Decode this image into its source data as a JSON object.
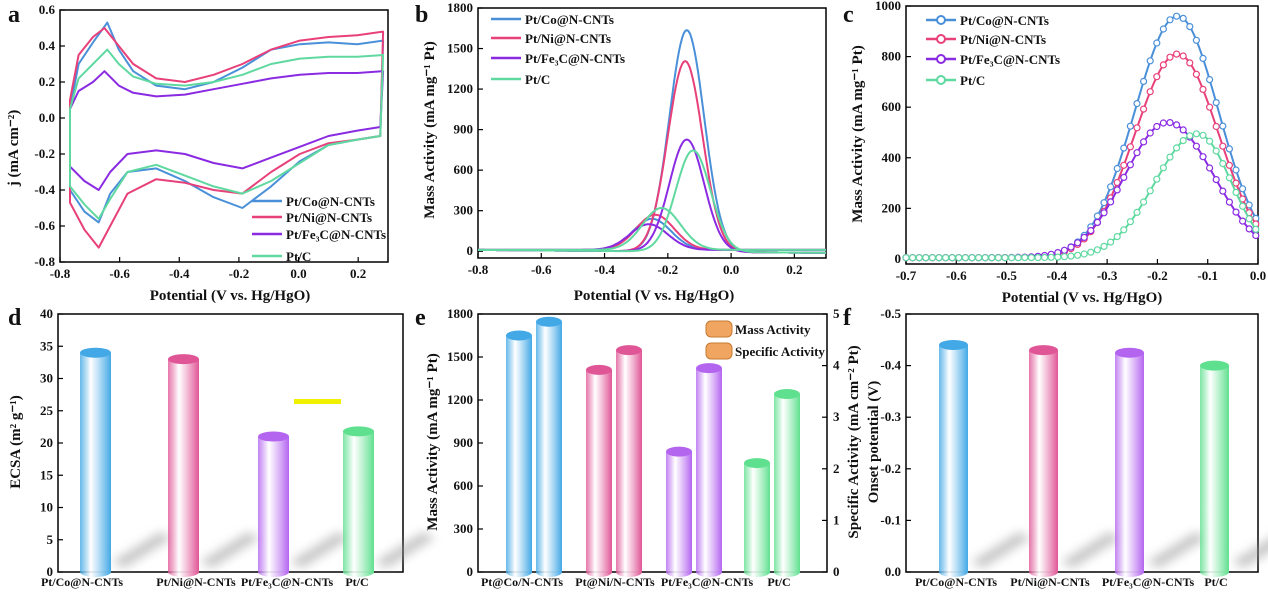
{
  "colors": {
    "co": "#4a90d9",
    "ni": "#e8407a",
    "fe": "#8a2be2",
    "c": "#5fd9a0",
    "bar_co": "#42a8e6",
    "bar_ni": "#e05596",
    "bar_fe": "#b465f0",
    "bar_c": "#5fe08f",
    "highlight": "#f0f000"
  },
  "panels": {
    "a": {
      "label": "a",
      "xlabel": "Potential (V vs. Hg/HgO)",
      "ylabel": "j (mA cm⁻²)",
      "xlim": [
        -0.8,
        0.3
      ],
      "ylim": [
        -0.8,
        0.6
      ],
      "xticks": [
        "-0.8",
        "-0.6",
        "-0.4",
        "-0.2",
        "0.0",
        "0.2"
      ],
      "yticks": [
        "-0.8",
        "-0.6",
        "-0.4",
        "-0.2",
        "0.0",
        "0.2",
        "0.4",
        "0.6"
      ],
      "legend": [
        "Pt/Co@N-CNTs",
        "Pt/Ni@N-CNTs",
        "Pt/Fe₃C@N-CNTs",
        "Pt/C"
      ]
    },
    "b": {
      "label": "b",
      "xlabel": "Potential (V vs. Hg/HgO)",
      "ylabel": "Mass Activity (mA mg⁻¹ Pt)",
      "xticks": [
        "-0.8",
        "-0.6",
        "-0.4",
        "-0.2",
        "0.0",
        "0.2"
      ],
      "yticks": [
        "0",
        "300",
        "600",
        "900",
        "1200",
        "1500",
        "1800"
      ],
      "legend": [
        "Pt/Co@N-CNTs",
        "Pt/Ni@N-CNTs",
        "Pt/Fe₃C@N-CNTs",
        "Pt/C"
      ]
    },
    "c": {
      "label": "c",
      "xlabel": "Potential (V vs. Hg/HgO)",
      "ylabel": "Mass Activity (mA mg⁻¹ Pt)",
      "xticks": [
        "-0.7",
        "-0.6",
        "-0.5",
        "-0.4",
        "-0.3",
        "-0.2",
        "-0.1",
        "0.0"
      ],
      "yticks": [
        "0",
        "200",
        "400",
        "600",
        "800",
        "1000"
      ],
      "legend": [
        "Pt/Co@N-CNTs",
        "Pt/Ni@N-CNTs",
        "Pt/Fe₃C@N-CNTs",
        "Pt/C"
      ]
    },
    "d": {
      "label": "d",
      "ylabel": "ECSA (m² g⁻¹)",
      "yticks": [
        "0",
        "5",
        "10",
        "15",
        "20",
        "25",
        "30",
        "35",
        "40"
      ],
      "categories": [
        "Pt/Co@N-CNTs",
        "Pt/Ni@N-CNTs",
        "Pt/Fe₃C@N-CNTs",
        "Pt/C"
      ]
    },
    "e": {
      "label": "e",
      "ylabel_left": "Mass Activity (mA mg⁻¹ Pt)",
      "ylabel_right": "Specific Activity (mA cm⁻² Pt)",
      "yticks_left": [
        "0",
        "300",
        "600",
        "900",
        "1200",
        "1500",
        "1800"
      ],
      "yticks_right": [
        "0",
        "1",
        "2",
        "3",
        "4",
        "5"
      ],
      "legend": [
        "Mass Activity",
        "Specific Activity"
      ],
      "categories": [
        "Pt@Co/N-CNTs",
        "Pt@Ni/N-CNTs",
        "Pt/Fe₃C@N-CNTs",
        "Pt/C"
      ]
    },
    "f": {
      "label": "f",
      "ylabel": "Onset potential (V)",
      "yticks": [
        "0.0",
        "-0.1",
        "-0.2",
        "-0.3",
        "-0.4",
        "-0.5"
      ],
      "categories": [
        "Pt/Co@N-CNTs",
        "Pt/Ni@N-CNTs",
        "Pt/Fe₃C@N-CNTs",
        "Pt/C"
      ]
    }
  },
  "chart_data": [
    {
      "panel": "a",
      "type": "line",
      "series": [
        {
          "name": "Pt/Co@N-CNTs",
          "anodic": [
            [
              -0.8,
              0.05
            ],
            [
              -0.77,
              0.3
            ],
            [
              -0.72,
              0.42
            ],
            [
              -0.67,
              0.53
            ],
            [
              -0.63,
              0.38
            ],
            [
              -0.58,
              0.26
            ],
            [
              -0.5,
              0.18
            ],
            [
              -0.4,
              0.16
            ],
            [
              -0.3,
              0.2
            ],
            [
              -0.2,
              0.28
            ],
            [
              -0.1,
              0.38
            ],
            [
              0.0,
              0.41
            ],
            [
              0.1,
              0.42
            ],
            [
              0.2,
              0.41
            ],
            [
              0.29,
              0.43
            ]
          ],
          "cathodic": [
            [
              0.29,
              0.43
            ],
            [
              0.28,
              -0.1
            ],
            [
              0.2,
              -0.12
            ],
            [
              0.1,
              -0.15
            ],
            [
              0.0,
              -0.24
            ],
            [
              -0.1,
              -0.38
            ],
            [
              -0.2,
              -0.5
            ],
            [
              -0.3,
              -0.44
            ],
            [
              -0.4,
              -0.35
            ],
            [
              -0.5,
              -0.28
            ],
            [
              -0.6,
              -0.3
            ],
            [
              -0.66,
              -0.42
            ],
            [
              -0.7,
              -0.58
            ],
            [
              -0.75,
              -0.52
            ],
            [
              -0.8,
              -0.4
            ]
          ]
        },
        {
          "name": "Pt/Ni@N-CNTs",
          "anodic": [
            [
              -0.8,
              0.1
            ],
            [
              -0.77,
              0.35
            ],
            [
              -0.72,
              0.45
            ],
            [
              -0.68,
              0.5
            ],
            [
              -0.63,
              0.4
            ],
            [
              -0.58,
              0.3
            ],
            [
              -0.5,
              0.22
            ],
            [
              -0.4,
              0.2
            ],
            [
              -0.3,
              0.24
            ],
            [
              -0.2,
              0.3
            ],
            [
              -0.1,
              0.38
            ],
            [
              0.0,
              0.43
            ],
            [
              0.1,
              0.45
            ],
            [
              0.2,
              0.46
            ],
            [
              0.29,
              0.48
            ]
          ],
          "cathodic": [
            [
              0.29,
              0.48
            ],
            [
              0.28,
              -0.1
            ],
            [
              0.2,
              -0.12
            ],
            [
              0.1,
              -0.14
            ],
            [
              0.0,
              -0.2
            ],
            [
              -0.1,
              -0.3
            ],
            [
              -0.2,
              -0.42
            ],
            [
              -0.3,
              -0.4
            ],
            [
              -0.4,
              -0.36
            ],
            [
              -0.5,
              -0.34
            ],
            [
              -0.6,
              -0.42
            ],
            [
              -0.66,
              -0.6
            ],
            [
              -0.7,
              -0.72
            ],
            [
              -0.75,
              -0.62
            ],
            [
              -0.8,
              -0.47
            ]
          ]
        },
        {
          "name": "Pt/Fe₃C@N-CNTs",
          "anodic": [
            [
              -0.8,
              0.05
            ],
            [
              -0.77,
              0.15
            ],
            [
              -0.72,
              0.2
            ],
            [
              -0.68,
              0.26
            ],
            [
              -0.63,
              0.18
            ],
            [
              -0.58,
              0.14
            ],
            [
              -0.5,
              0.12
            ],
            [
              -0.4,
              0.13
            ],
            [
              -0.3,
              0.16
            ],
            [
              -0.2,
              0.19
            ],
            [
              -0.1,
              0.22
            ],
            [
              0.0,
              0.24
            ],
            [
              0.1,
              0.25
            ],
            [
              0.2,
              0.25
            ],
            [
              0.29,
              0.26
            ]
          ],
          "cathodic": [
            [
              0.29,
              0.26
            ],
            [
              0.28,
              -0.05
            ],
            [
              0.2,
              -0.07
            ],
            [
              0.1,
              -0.1
            ],
            [
              0.0,
              -0.16
            ],
            [
              -0.1,
              -0.22
            ],
            [
              -0.2,
              -0.28
            ],
            [
              -0.3,
              -0.25
            ],
            [
              -0.4,
              -0.2
            ],
            [
              -0.5,
              -0.18
            ],
            [
              -0.6,
              -0.2
            ],
            [
              -0.66,
              -0.3
            ],
            [
              -0.7,
              -0.4
            ],
            [
              -0.75,
              -0.35
            ],
            [
              -0.8,
              -0.27
            ]
          ]
        },
        {
          "name": "Pt/C",
          "anodic": [
            [
              -0.8,
              0.05
            ],
            [
              -0.77,
              0.22
            ],
            [
              -0.72,
              0.3
            ],
            [
              -0.67,
              0.38
            ],
            [
              -0.63,
              0.3
            ],
            [
              -0.58,
              0.23
            ],
            [
              -0.5,
              0.19
            ],
            [
              -0.4,
              0.18
            ],
            [
              -0.3,
              0.2
            ],
            [
              -0.2,
              0.24
            ],
            [
              -0.1,
              0.3
            ],
            [
              0.0,
              0.33
            ],
            [
              0.1,
              0.34
            ],
            [
              0.2,
              0.34
            ],
            [
              0.29,
              0.35
            ]
          ],
          "cathodic": [
            [
              0.29,
              0.35
            ],
            [
              0.28,
              -0.1
            ],
            [
              0.2,
              -0.12
            ],
            [
              0.1,
              -0.15
            ],
            [
              0.0,
              -0.25
            ],
            [
              -0.1,
              -0.35
            ],
            [
              -0.2,
              -0.42
            ],
            [
              -0.3,
              -0.38
            ],
            [
              -0.4,
              -0.32
            ],
            [
              -0.5,
              -0.26
            ],
            [
              -0.6,
              -0.3
            ],
            [
              -0.66,
              -0.45
            ],
            [
              -0.7,
              -0.56
            ],
            [
              -0.75,
              -0.48
            ],
            [
              -0.8,
              -0.38
            ]
          ]
        }
      ]
    },
    {
      "panel": "b",
      "type": "line",
      "xlim": [
        -0.8,
        0.3
      ],
      "ylim": [
        -50,
        1800
      ],
      "series": [
        {
          "name": "Pt/Co@N-CNTs",
          "peak_fwd": [
            -0.14,
            1640
          ],
          "peak_back": [
            -0.25,
            230
          ]
        },
        {
          "name": "Pt/Ni@N-CNTs",
          "peak_fwd": [
            -0.145,
            1410
          ],
          "peak_back": [
            -0.24,
            260
          ]
        },
        {
          "name": "Pt/Fe₃C@N-CNTs",
          "peak_fwd": [
            -0.14,
            830
          ],
          "peak_back": [
            -0.26,
            190
          ]
        },
        {
          "name": "Pt/C",
          "peak_fwd": [
            -0.12,
            750
          ],
          "peak_back": [
            -0.22,
            310
          ]
        }
      ]
    },
    {
      "panel": "c",
      "type": "line",
      "xlim": [
        -0.7,
        0.0
      ],
      "ylim": [
        -20,
        1000
      ],
      "series": [
        {
          "name": "Pt/Co@N-CNTs",
          "peak": [
            -0.16,
            955
          ],
          "end_value": 140
        },
        {
          "name": "Pt/Ni@N-CNTs",
          "peak": [
            -0.16,
            805
          ],
          "end_value": 120
        },
        {
          "name": "Pt/Fe₃C@N-CNTs",
          "peak": [
            -0.18,
            535
          ],
          "end_value": 80
        },
        {
          "name": "Pt/C",
          "peak": [
            -0.12,
            490
          ],
          "end_value": 100
        }
      ]
    },
    {
      "panel": "d",
      "type": "bar",
      "categories": [
        "Pt/Co@N-CNTs",
        "Pt/Ni@N-CNTs",
        "Pt/Fe₃C@N-CNTs",
        "Pt/C"
      ],
      "values": [
        34.0,
        33.0,
        21.0,
        21.8
      ],
      "ylim": [
        0,
        40
      ]
    },
    {
      "panel": "e",
      "type": "bar",
      "categories": [
        "Pt@Co/N-CNTs",
        "Pt@Ni/N-CNTs",
        "Pt/Fe₃C@N-CNTs",
        "Pt/C"
      ],
      "series": [
        {
          "name": "Mass Activity",
          "values": [
            1650,
            1410,
            840,
            760
          ],
          "ylim": [
            0,
            1800
          ]
        },
        {
          "name": "Specific Activity",
          "values": [
            4.85,
            4.3,
            3.95,
            3.45
          ],
          "ylim": [
            0,
            5
          ]
        }
      ]
    },
    {
      "panel": "f",
      "type": "bar",
      "categories": [
        "Pt/Co@N-CNTs",
        "Pt/Ni@N-CNTs",
        "Pt/Fe₃C@N-CNTs",
        "Pt/C"
      ],
      "values": [
        -0.44,
        -0.43,
        -0.425,
        -0.4
      ],
      "ylim": [
        0,
        -0.5
      ]
    }
  ]
}
